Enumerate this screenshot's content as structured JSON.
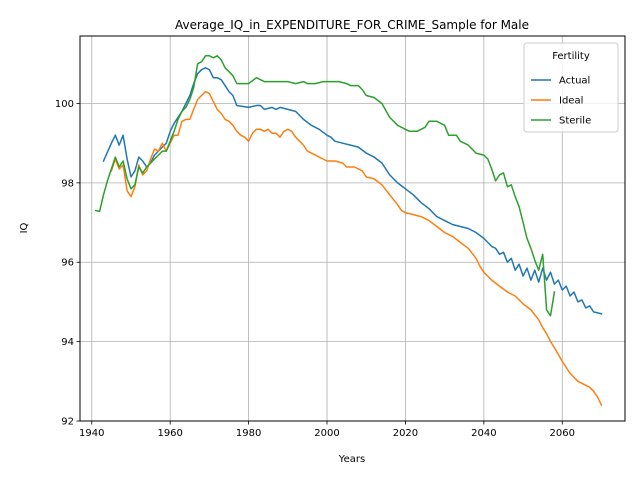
{
  "chart_data": {
    "type": "line",
    "title": "Average_IQ_in_EXPENDITURE_FOR_CRIME_Sample for Male",
    "xlabel": "Years",
    "ylabel": "IQ",
    "xlim": [
      1937,
      2076
    ],
    "ylim": [
      92,
      101.7
    ],
    "xticks": [
      1940,
      1960,
      1980,
      2000,
      2020,
      2040,
      2060
    ],
    "yticks": [
      92,
      94,
      96,
      98,
      100
    ],
    "grid": true,
    "legend": {
      "title": "Fertility",
      "position": "top-right"
    },
    "series": [
      {
        "name": "Actual",
        "color": "#1f77b4",
        "points": [
          [
            1943,
            98.55
          ],
          [
            1945,
            99.0
          ],
          [
            1946,
            99.2
          ],
          [
            1947,
            98.95
          ],
          [
            1948,
            99.2
          ],
          [
            1949,
            98.6
          ],
          [
            1950,
            98.15
          ],
          [
            1951,
            98.3
          ],
          [
            1952,
            98.65
          ],
          [
            1953,
            98.55
          ],
          [
            1954,
            98.4
          ],
          [
            1955,
            98.5
          ],
          [
            1956,
            98.7
          ],
          [
            1957,
            98.8
          ],
          [
            1958,
            98.9
          ],
          [
            1959,
            99.0
          ],
          [
            1960,
            99.3
          ],
          [
            1961,
            99.5
          ],
          [
            1962,
            99.65
          ],
          [
            1963,
            99.8
          ],
          [
            1964,
            100.0
          ],
          [
            1965,
            100.2
          ],
          [
            1966,
            100.5
          ],
          [
            1967,
            100.75
          ],
          [
            1968,
            100.85
          ],
          [
            1969,
            100.9
          ],
          [
            1970,
            100.85
          ],
          [
            1971,
            100.65
          ],
          [
            1972,
            100.65
          ],
          [
            1973,
            100.6
          ],
          [
            1974,
            100.45
          ],
          [
            1975,
            100.3
          ],
          [
            1976,
            100.2
          ],
          [
            1977,
            99.95
          ],
          [
            1980,
            99.9
          ],
          [
            1982,
            99.95
          ],
          [
            1983,
            99.95
          ],
          [
            1984,
            99.85
          ],
          [
            1986,
            99.9
          ],
          [
            1987,
            99.85
          ],
          [
            1988,
            99.9
          ],
          [
            1990,
            99.85
          ],
          [
            1992,
            99.8
          ],
          [
            1994,
            99.6
          ],
          [
            1996,
            99.45
          ],
          [
            1998,
            99.35
          ],
          [
            2000,
            99.2
          ],
          [
            2001,
            99.15
          ],
          [
            2002,
            99.05
          ],
          [
            2004,
            99.0
          ],
          [
            2006,
            98.95
          ],
          [
            2008,
            98.9
          ],
          [
            2010,
            98.75
          ],
          [
            2012,
            98.65
          ],
          [
            2014,
            98.5
          ],
          [
            2016,
            98.2
          ],
          [
            2018,
            98.0
          ],
          [
            2020,
            97.85
          ],
          [
            2022,
            97.7
          ],
          [
            2024,
            97.5
          ],
          [
            2026,
            97.35
          ],
          [
            2028,
            97.15
          ],
          [
            2030,
            97.05
          ],
          [
            2032,
            96.95
          ],
          [
            2034,
            96.9
          ],
          [
            2036,
            96.85
          ],
          [
            2038,
            96.75
          ],
          [
            2040,
            96.6
          ],
          [
            2041,
            96.5
          ],
          [
            2042,
            96.4
          ],
          [
            2043,
            96.35
          ],
          [
            2044,
            96.2
          ],
          [
            2045,
            96.25
          ],
          [
            2046,
            96.0
          ],
          [
            2047,
            96.1
          ],
          [
            2048,
            95.8
          ],
          [
            2049,
            95.95
          ],
          [
            2050,
            95.65
          ],
          [
            2051,
            95.85
          ],
          [
            2052,
            95.55
          ],
          [
            2053,
            95.8
          ],
          [
            2054,
            95.5
          ],
          [
            2055,
            95.85
          ],
          [
            2056,
            95.55
          ],
          [
            2057,
            95.75
          ],
          [
            2058,
            95.45
          ],
          [
            2059,
            95.55
          ],
          [
            2060,
            95.3
          ],
          [
            2061,
            95.4
          ],
          [
            2062,
            95.15
          ],
          [
            2063,
            95.25
          ],
          [
            2064,
            95.0
          ],
          [
            2065,
            95.05
          ],
          [
            2066,
            94.85
          ],
          [
            2067,
            94.9
          ],
          [
            2068,
            94.75
          ],
          [
            2070,
            94.7
          ]
        ]
      },
      {
        "name": "Ideal",
        "color": "#ff7f0e",
        "points": [
          [
            1945,
            98.3
          ],
          [
            1946,
            98.6
          ],
          [
            1947,
            98.35
          ],
          [
            1948,
            98.45
          ],
          [
            1949,
            97.8
          ],
          [
            1950,
            97.65
          ],
          [
            1951,
            97.9
          ],
          [
            1952,
            98.45
          ],
          [
            1953,
            98.2
          ],
          [
            1954,
            98.3
          ],
          [
            1955,
            98.6
          ],
          [
            1956,
            98.85
          ],
          [
            1957,
            98.8
          ],
          [
            1958,
            99.0
          ],
          [
            1959,
            98.8
          ],
          [
            1960,
            99.0
          ],
          [
            1961,
            99.2
          ],
          [
            1962,
            99.2
          ],
          [
            1963,
            99.55
          ],
          [
            1964,
            99.6
          ],
          [
            1965,
            99.6
          ],
          [
            1966,
            99.85
          ],
          [
            1967,
            100.1
          ],
          [
            1968,
            100.2
          ],
          [
            1969,
            100.3
          ],
          [
            1970,
            100.25
          ],
          [
            1971,
            100.05
          ],
          [
            1972,
            99.85
          ],
          [
            1973,
            99.75
          ],
          [
            1974,
            99.6
          ],
          [
            1975,
            99.55
          ],
          [
            1976,
            99.45
          ],
          [
            1977,
            99.3
          ],
          [
            1978,
            99.2
          ],
          [
            1979,
            99.15
          ],
          [
            1980,
            99.05
          ],
          [
            1981,
            99.25
          ],
          [
            1982,
            99.35
          ],
          [
            1983,
            99.35
          ],
          [
            1984,
            99.3
          ],
          [
            1985,
            99.35
          ],
          [
            1986,
            99.25
          ],
          [
            1987,
            99.25
          ],
          [
            1988,
            99.15
          ],
          [
            1989,
            99.3
          ],
          [
            1990,
            99.35
          ],
          [
            1991,
            99.3
          ],
          [
            1992,
            99.15
          ],
          [
            1994,
            98.95
          ],
          [
            1995,
            98.8
          ],
          [
            1997,
            98.7
          ],
          [
            1999,
            98.6
          ],
          [
            2000,
            98.55
          ],
          [
            2002,
            98.55
          ],
          [
            2004,
            98.5
          ],
          [
            2005,
            98.4
          ],
          [
            2007,
            98.4
          ],
          [
            2009,
            98.3
          ],
          [
            2010,
            98.15
          ],
          [
            2012,
            98.1
          ],
          [
            2014,
            97.95
          ],
          [
            2016,
            97.7
          ],
          [
            2018,
            97.45
          ],
          [
            2019,
            97.3
          ],
          [
            2020,
            97.25
          ],
          [
            2022,
            97.2
          ],
          [
            2024,
            97.15
          ],
          [
            2026,
            97.05
          ],
          [
            2028,
            96.9
          ],
          [
            2030,
            96.75
          ],
          [
            2032,
            96.65
          ],
          [
            2034,
            96.5
          ],
          [
            2036,
            96.35
          ],
          [
            2038,
            96.1
          ],
          [
            2039,
            95.9
          ],
          [
            2040,
            95.75
          ],
          [
            2042,
            95.55
          ],
          [
            2044,
            95.4
          ],
          [
            2046,
            95.25
          ],
          [
            2048,
            95.15
          ],
          [
            2050,
            94.95
          ],
          [
            2052,
            94.8
          ],
          [
            2054,
            94.55
          ],
          [
            2055,
            94.35
          ],
          [
            2056,
            94.2
          ],
          [
            2057,
            94.0
          ],
          [
            2058,
            93.85
          ],
          [
            2060,
            93.5
          ],
          [
            2062,
            93.2
          ],
          [
            2064,
            93.0
          ],
          [
            2066,
            92.9
          ],
          [
            2067,
            92.85
          ],
          [
            2068,
            92.75
          ],
          [
            2069,
            92.6
          ],
          [
            2070,
            92.4
          ]
        ]
      },
      {
        "name": "Sterile",
        "color": "#2ca02c",
        "points": [
          [
            1941,
            97.3
          ],
          [
            1942,
            97.28
          ],
          [
            1943,
            97.7
          ],
          [
            1944,
            98.05
          ],
          [
            1945,
            98.35
          ],
          [
            1946,
            98.65
          ],
          [
            1947,
            98.4
          ],
          [
            1948,
            98.55
          ],
          [
            1949,
            98.1
          ],
          [
            1950,
            97.85
          ],
          [
            1951,
            97.95
          ],
          [
            1952,
            98.4
          ],
          [
            1953,
            98.25
          ],
          [
            1954,
            98.4
          ],
          [
            1955,
            98.5
          ],
          [
            1956,
            98.6
          ],
          [
            1957,
            98.7
          ],
          [
            1958,
            98.8
          ],
          [
            1959,
            98.8
          ],
          [
            1960,
            99.05
          ],
          [
            1961,
            99.3
          ],
          [
            1962,
            99.6
          ],
          [
            1963,
            99.8
          ],
          [
            1964,
            99.9
          ],
          [
            1965,
            100.1
          ],
          [
            1966,
            100.4
          ],
          [
            1967,
            101.0
          ],
          [
            1968,
            101.05
          ],
          [
            1969,
            101.2
          ],
          [
            1970,
            101.2
          ],
          [
            1971,
            101.15
          ],
          [
            1972,
            101.2
          ],
          [
            1973,
            101.1
          ],
          [
            1974,
            100.9
          ],
          [
            1975,
            100.8
          ],
          [
            1976,
            100.7
          ],
          [
            1977,
            100.5
          ],
          [
            1978,
            100.5
          ],
          [
            1980,
            100.5
          ],
          [
            1982,
            100.65
          ],
          [
            1983,
            100.6
          ],
          [
            1984,
            100.55
          ],
          [
            1986,
            100.55
          ],
          [
            1988,
            100.55
          ],
          [
            1990,
            100.55
          ],
          [
            1992,
            100.5
          ],
          [
            1994,
            100.55
          ],
          [
            1995,
            100.5
          ],
          [
            1997,
            100.5
          ],
          [
            1999,
            100.55
          ],
          [
            2001,
            100.55
          ],
          [
            2003,
            100.55
          ],
          [
            2005,
            100.5
          ],
          [
            2006,
            100.45
          ],
          [
            2008,
            100.45
          ],
          [
            2009,
            100.35
          ],
          [
            2010,
            100.2
          ],
          [
            2012,
            100.15
          ],
          [
            2014,
            100.0
          ],
          [
            2016,
            99.65
          ],
          [
            2018,
            99.45
          ],
          [
            2020,
            99.35
          ],
          [
            2021,
            99.3
          ],
          [
            2023,
            99.3
          ],
          [
            2025,
            99.4
          ],
          [
            2026,
            99.55
          ],
          [
            2028,
            99.55
          ],
          [
            2030,
            99.45
          ],
          [
            2031,
            99.2
          ],
          [
            2033,
            99.2
          ],
          [
            2034,
            99.05
          ],
          [
            2036,
            98.95
          ],
          [
            2038,
            98.75
          ],
          [
            2040,
            98.7
          ],
          [
            2041,
            98.6
          ],
          [
            2042,
            98.35
          ],
          [
            2043,
            98.05
          ],
          [
            2044,
            98.2
          ],
          [
            2045,
            98.25
          ],
          [
            2046,
            97.9
          ],
          [
            2047,
            97.95
          ],
          [
            2048,
            97.65
          ],
          [
            2049,
            97.4
          ],
          [
            2050,
            97.0
          ],
          [
            2051,
            96.6
          ],
          [
            2052,
            96.35
          ],
          [
            2053,
            96.05
          ],
          [
            2054,
            95.8
          ],
          [
            2055,
            96.2
          ],
          [
            2056,
            94.8
          ],
          [
            2057,
            94.65
          ],
          [
            2058,
            95.25
          ]
        ]
      }
    ]
  }
}
